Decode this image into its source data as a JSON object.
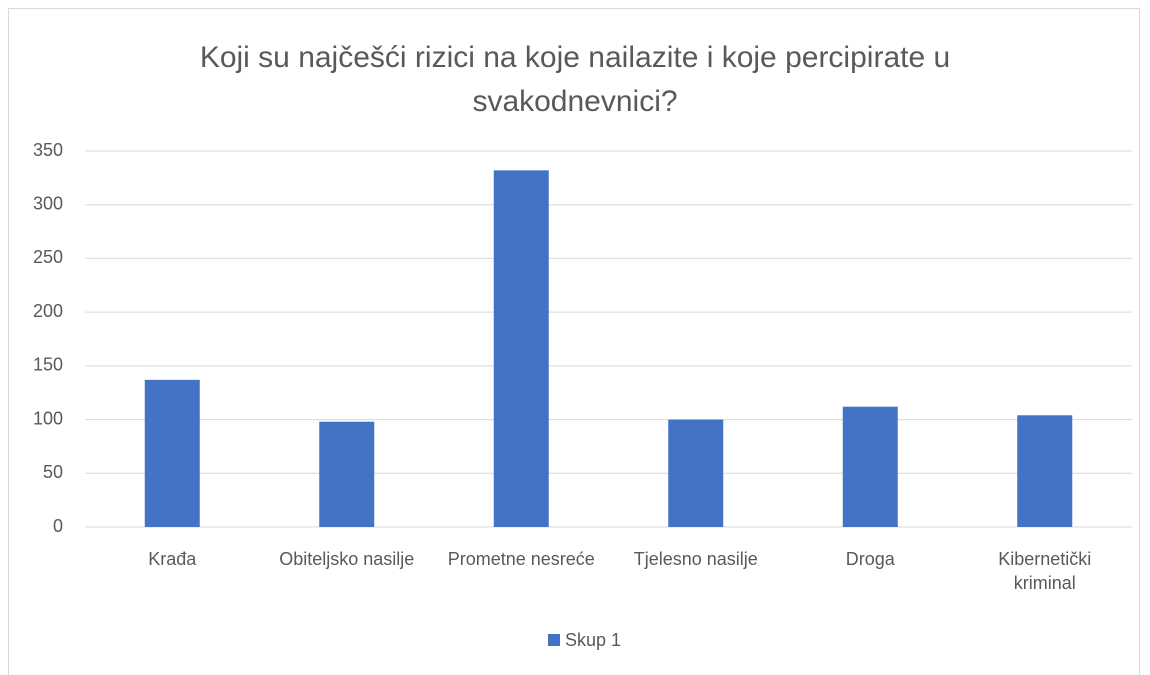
{
  "chart_data": {
    "type": "bar",
    "title": "Koji su najčešći rizici na koje nailazite i koje percipirate u svakodnevnici?",
    "categories": [
      "Krađa",
      "Obiteljsko nasilje",
      "Prometne nesreće",
      "Tjelesno nasilje",
      "Droga",
      "Kibernetički kriminal"
    ],
    "series": [
      {
        "name": "Skup 1",
        "color": "#4472c4",
        "values": [
          137,
          98,
          332,
          100,
          112,
          104
        ]
      }
    ],
    "ylim": [
      0,
      350
    ],
    "yticks": [
      0,
      50,
      100,
      150,
      200,
      250,
      300,
      350
    ],
    "grid": true,
    "legend": "bottom"
  }
}
